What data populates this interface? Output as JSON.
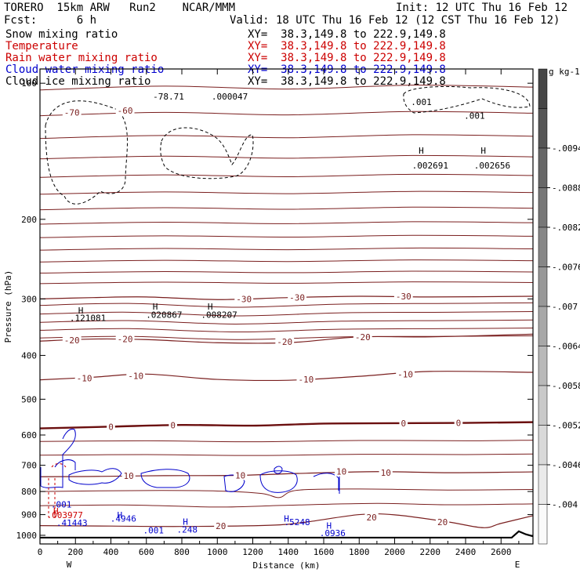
{
  "header": {
    "line1_left": "TORERO  15km ARW   Run2    NCAR/MMM",
    "line1_right": "Init: 12 UTC Thu 16 Feb 12",
    "line2_left": "Fcst:      6 h",
    "line2_right": "Valid: 18 UTC Thu 16 Feb 12 (12 CST Thu 16 Feb 12)",
    "fields": [
      {
        "name": "Snow mixing ratio",
        "xy": "XY=  38.3,149.8 to 222.9,149.8",
        "color": "#000000"
      },
      {
        "name": "Temperature",
        "xy": "XY=  38.3,149.8 to 222.9,149.8",
        "color": "#cc0000"
      },
      {
        "name": "Rain water mixing ratio",
        "xy": "XY=  38.3,149.8 to 222.9,149.8",
        "color": "#cc0000"
      },
      {
        "name": "Cloud water mixing ratio",
        "xy": "XY=  38.3,149.8 to 222.9,149.8",
        "color": "#0000cc"
      },
      {
        "name": "Cloud ice mixing ratio",
        "xy": "XY=  38.3,149.8 to 222.9,149.8",
        "color": "#000000"
      }
    ]
  },
  "chart_data": {
    "type": "contour",
    "xlabel": "Distance (km)",
    "ylabel": "Pressure (hPa)",
    "x_ticks": [
      0,
      200,
      400,
      600,
      800,
      1000,
      1200,
      1400,
      1600,
      1800,
      2000,
      2200,
      2400,
      2600
    ],
    "xlim": [
      0,
      2780
    ],
    "y_ticks": [
      100,
      200,
      300,
      400,
      500,
      600,
      700,
      800,
      900,
      1000
    ],
    "ylim": [
      1045,
      93
    ],
    "y_scale": "log",
    "end_labels": {
      "left": "W",
      "right": "E"
    },
    "colorbar": {
      "unit": "g kg-1",
      "labels": [
        "-.0094",
        "-.0088",
        "-.0082",
        "-.0076",
        "-.007",
        "-.0064",
        "-.0058",
        "-.0052",
        "-.0046",
        "-.004"
      ]
    },
    "temperature_contours": [
      {
        "value": -30,
        "label": "-30",
        "points": [
          [
            0,
            300
          ],
          [
            300,
            298
          ],
          [
            600,
            297
          ],
          [
            1000,
            301
          ],
          [
            1400,
            298
          ],
          [
            1800,
            296
          ],
          [
            2200,
            297
          ],
          [
            2780,
            296
          ]
        ]
      },
      {
        "value": -20,
        "label": "-20",
        "points": [
          [
            0,
            372
          ],
          [
            300,
            368
          ],
          [
            600,
            369
          ],
          [
            1000,
            375
          ],
          [
            1400,
            375
          ],
          [
            1800,
            364
          ],
          [
            2200,
            364
          ],
          [
            2780,
            359
          ]
        ]
      },
      {
        "value": -10,
        "label": "-10",
        "points": [
          [
            0,
            453
          ],
          [
            300,
            447
          ],
          [
            600,
            440
          ],
          [
            1000,
            452
          ],
          [
            1400,
            454
          ],
          [
            1800,
            445
          ],
          [
            2200,
            434
          ],
          [
            2780,
            436
          ]
        ]
      },
      {
        "value": 0,
        "label": "0",
        "points": [
          [
            0,
            580
          ],
          [
            400,
            575
          ],
          [
            800,
            570
          ],
          [
            1200,
            572
          ],
          [
            1600,
            566
          ],
          [
            2000,
            565
          ],
          [
            2400,
            564
          ],
          [
            2780,
            562
          ]
        ]
      },
      {
        "value": 10,
        "label": "10",
        "points": [
          [
            0,
            742
          ],
          [
            300,
            741
          ],
          [
            700,
            738
          ],
          [
            1100,
            737
          ],
          [
            1500,
            729
          ],
          [
            1900,
            723
          ],
          [
            2300,
            727
          ],
          [
            2780,
            724
          ]
        ]
      },
      {
        "value": 20,
        "label": "20",
        "points": [
          [
            0,
            952
          ],
          [
            400,
            954
          ],
          [
            800,
            956
          ],
          [
            1300,
            950
          ],
          [
            1500,
            935
          ],
          [
            1800,
            900
          ],
          [
            2000,
            901
          ],
          [
            2300,
            934
          ],
          [
            2500,
            962
          ],
          [
            2600,
            941
          ],
          [
            2780,
            905
          ]
        ]
      }
    ],
    "labels": {
      "temperature": [
        {
          "text": "-70",
          "x": 180,
          "p": 116
        },
        {
          "text": "-60",
          "x": 480,
          "p": 115
        },
        {
          "text": "-30",
          "x": 1150,
          "p": 300
        },
        {
          "text": "-30",
          "x": 1450,
          "p": 298
        },
        {
          "text": "-30",
          "x": 2050,
          "p": 296
        },
        {
          "text": "-20",
          "x": 180,
          "p": 370
        },
        {
          "text": "-20",
          "x": 480,
          "p": 368
        },
        {
          "text": "-20",
          "x": 1380,
          "p": 373
        },
        {
          "text": "-20",
          "x": 1820,
          "p": 364
        },
        {
          "text": "-10",
          "x": 250,
          "p": 449
        },
        {
          "text": "-10",
          "x": 540,
          "p": 444
        },
        {
          "text": "-10",
          "x": 1500,
          "p": 452
        },
        {
          "text": "-10",
          "x": 2060,
          "p": 440
        },
        {
          "text": "0",
          "x": 400,
          "p": 575
        },
        {
          "text": "0",
          "x": 750,
          "p": 571
        },
        {
          "text": "0",
          "x": 2050,
          "p": 565
        },
        {
          "text": "0",
          "x": 2360,
          "p": 564
        },
        {
          "text": "10",
          "x": 500,
          "p": 739
        },
        {
          "text": "10",
          "x": 1130,
          "p": 737
        },
        {
          "text": "10",
          "x": 1700,
          "p": 723
        },
        {
          "text": "10",
          "x": 1950,
          "p": 727
        },
        {
          "text": "20",
          "x": 1020,
          "p": 954
        },
        {
          "text": "20",
          "x": 1870,
          "p": 912
        },
        {
          "text": "20",
          "x": 2270,
          "p": 934
        }
      ],
      "extrema": [
        {
          "text": "H",
          "x": 230,
          "p": 318,
          "color": "#000000"
        },
        {
          "text": ".121081",
          "x": 270,
          "p": 330,
          "color": "#000000"
        },
        {
          "text": "H",
          "x": 650,
          "p": 312,
          "color": "#000000"
        },
        {
          "text": ".020867",
          "x": 700,
          "p": 325,
          "color": "#000000"
        },
        {
          "text": "H",
          "x": 960,
          "p": 312,
          "color": "#000000"
        },
        {
          "text": ".008207",
          "x": 1010,
          "p": 325,
          "color": "#000000"
        },
        {
          "text": "H",
          "x": 2150,
          "p": 141,
          "color": "#000000"
        },
        {
          "text": ".002691",
          "x": 2200,
          "p": 152,
          "color": "#000000"
        },
        {
          "text": "H",
          "x": 2500,
          "p": 141,
          "color": "#000000"
        },
        {
          "text": ".002656",
          "x": 2550,
          "p": 152,
          "color": "#000000"
        },
        {
          "text": "-78.71",
          "x": 725,
          "p": 107,
          "color": "#000000"
        },
        {
          "text": ".000047",
          "x": 1070,
          "p": 107,
          "color": "#000000"
        },
        {
          "text": ".001",
          "x": 2150,
          "p": 110,
          "color": "#000000"
        },
        {
          "text": ".001",
          "x": 2450,
          "p": 118,
          "color": "#000000"
        },
        {
          "text": "H",
          "x": 90,
          "p": 883,
          "color": "#cc0000"
        },
        {
          "text": ".003977",
          "x": 140,
          "p": 901,
          "color": "#cc0000"
        },
        {
          "text": ".001",
          "x": 120,
          "p": 855,
          "color": "#0000cc"
        },
        {
          "text": ".41443",
          "x": 180,
          "p": 938,
          "color": "#0000cc"
        },
        {
          "text": "H",
          "x": 450,
          "p": 901,
          "color": "#0000cc"
        },
        {
          "text": ".4946",
          "x": 470,
          "p": 918,
          "color": "#0000cc"
        },
        {
          "text": ".001",
          "x": 640,
          "p": 975,
          "color": "#0000cc"
        },
        {
          "text": "H",
          "x": 820,
          "p": 932,
          "color": "#0000cc"
        },
        {
          "text": ".248",
          "x": 830,
          "p": 970,
          "color": "#0000cc"
        },
        {
          "text": "H",
          "x": 1390,
          "p": 918,
          "color": "#0000cc"
        },
        {
          "text": ".5248",
          "x": 1450,
          "p": 934,
          "color": "#0000cc"
        },
        {
          "text": "H",
          "x": 1630,
          "p": 951,
          "color": "#0000cc"
        },
        {
          "text": ".0936",
          "x": 1650,
          "p": 988,
          "color": "#0000cc"
        }
      ]
    }
  }
}
